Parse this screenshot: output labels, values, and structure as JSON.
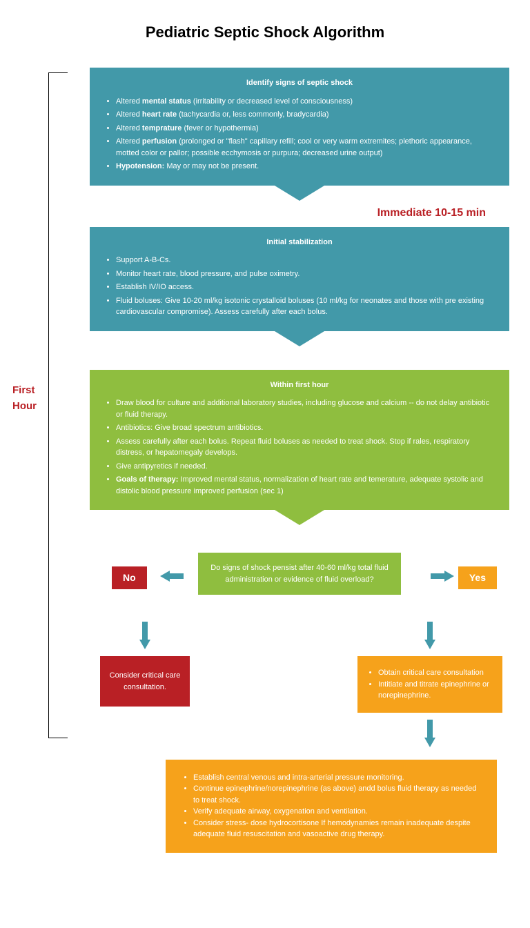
{
  "title": "Pediatric Septic Shock Algorithm",
  "side_label": "First Hour",
  "time_label": "Immediate 10-15 min",
  "colors": {
    "teal": "#4299a9",
    "green": "#8fbe3f",
    "orange": "#f6a21b",
    "red": "#b92025",
    "text_red": "#b92025",
    "bg": "#ffffff"
  },
  "box1": {
    "title": "Identify signs of septic shock",
    "items": [
      "Altered <b>mental status</b> (irritability or decreased level of consciousness)",
      "Altered <b>heart rate</b> (tachycardia or, less commonly, bradycardia)",
      "Altered <b>temprature</b> (fever or hypothermia)",
      "Altered <b>perfusion</b> (prolonged or \"flash\" capillary refill; cool or very warm extremites; plethoric appearance, motted color or pallor; possible ecchymosis or purpura; decreased urine output)",
      "<b>Hypotension:</b> May or may not be present."
    ]
  },
  "box2": {
    "title": "Initial stabilization",
    "items": [
      "Support A-B-Cs.",
      "Monitor heart rate, blood pressure, and pulse oximetry.",
      "Establish IV/IO access.",
      "Fluid boluses: Give 10-20 ml/kg isotonic crystalloid boluses (10 ml/kg for neonates and those with pre existing cardiovascular compromise). Assess carefully after each bolus."
    ]
  },
  "box3": {
    "title": "Within first hour",
    "items": [
      "Draw blood for culture and additional laboratory studies, including glucose and calcium -- do not delay antibiotic or fluid therapy.",
      "Antibiotics: Give broad spectrum antibiotics.",
      "Assess carefully after each bolus. Repeat fluid boluses as needed to treat shock. Stop if rales, respiratory distress, or hepatomegaly develops.",
      "Give antipyretics if needed.",
      "<b>Goals of therapy:</b> Improved mental status, normalization of heart rate and temerature, adequate systolic and distolic blood pressure improved perfusion (sec 1)"
    ]
  },
  "decision": {
    "text": "Do signs of shock pensist after 40-60 ml/kg total fluid administration or evidence of fluid overload?",
    "no": "No",
    "yes": "Yes"
  },
  "no_result": "Consider critical care consultation.",
  "yes_result": {
    "items": [
      "Obtain critical care consultation",
      "Intitiate and titrate epinephrine or norepinephrine."
    ]
  },
  "final": {
    "items": [
      "Establish central venous and intra-arterial pressure monitoring.",
      "Continue epinephrine/norepinephrine (as above) andd bolus fluid therapy as needed to treat shock.",
      "Verify adequate airway, oxygenation and ventilation.",
      "Consider stress- dose hydrocortisone If hemodynamies remain inadequate despite adequate fluid resuscitation and vasoactive drug therapy."
    ]
  }
}
